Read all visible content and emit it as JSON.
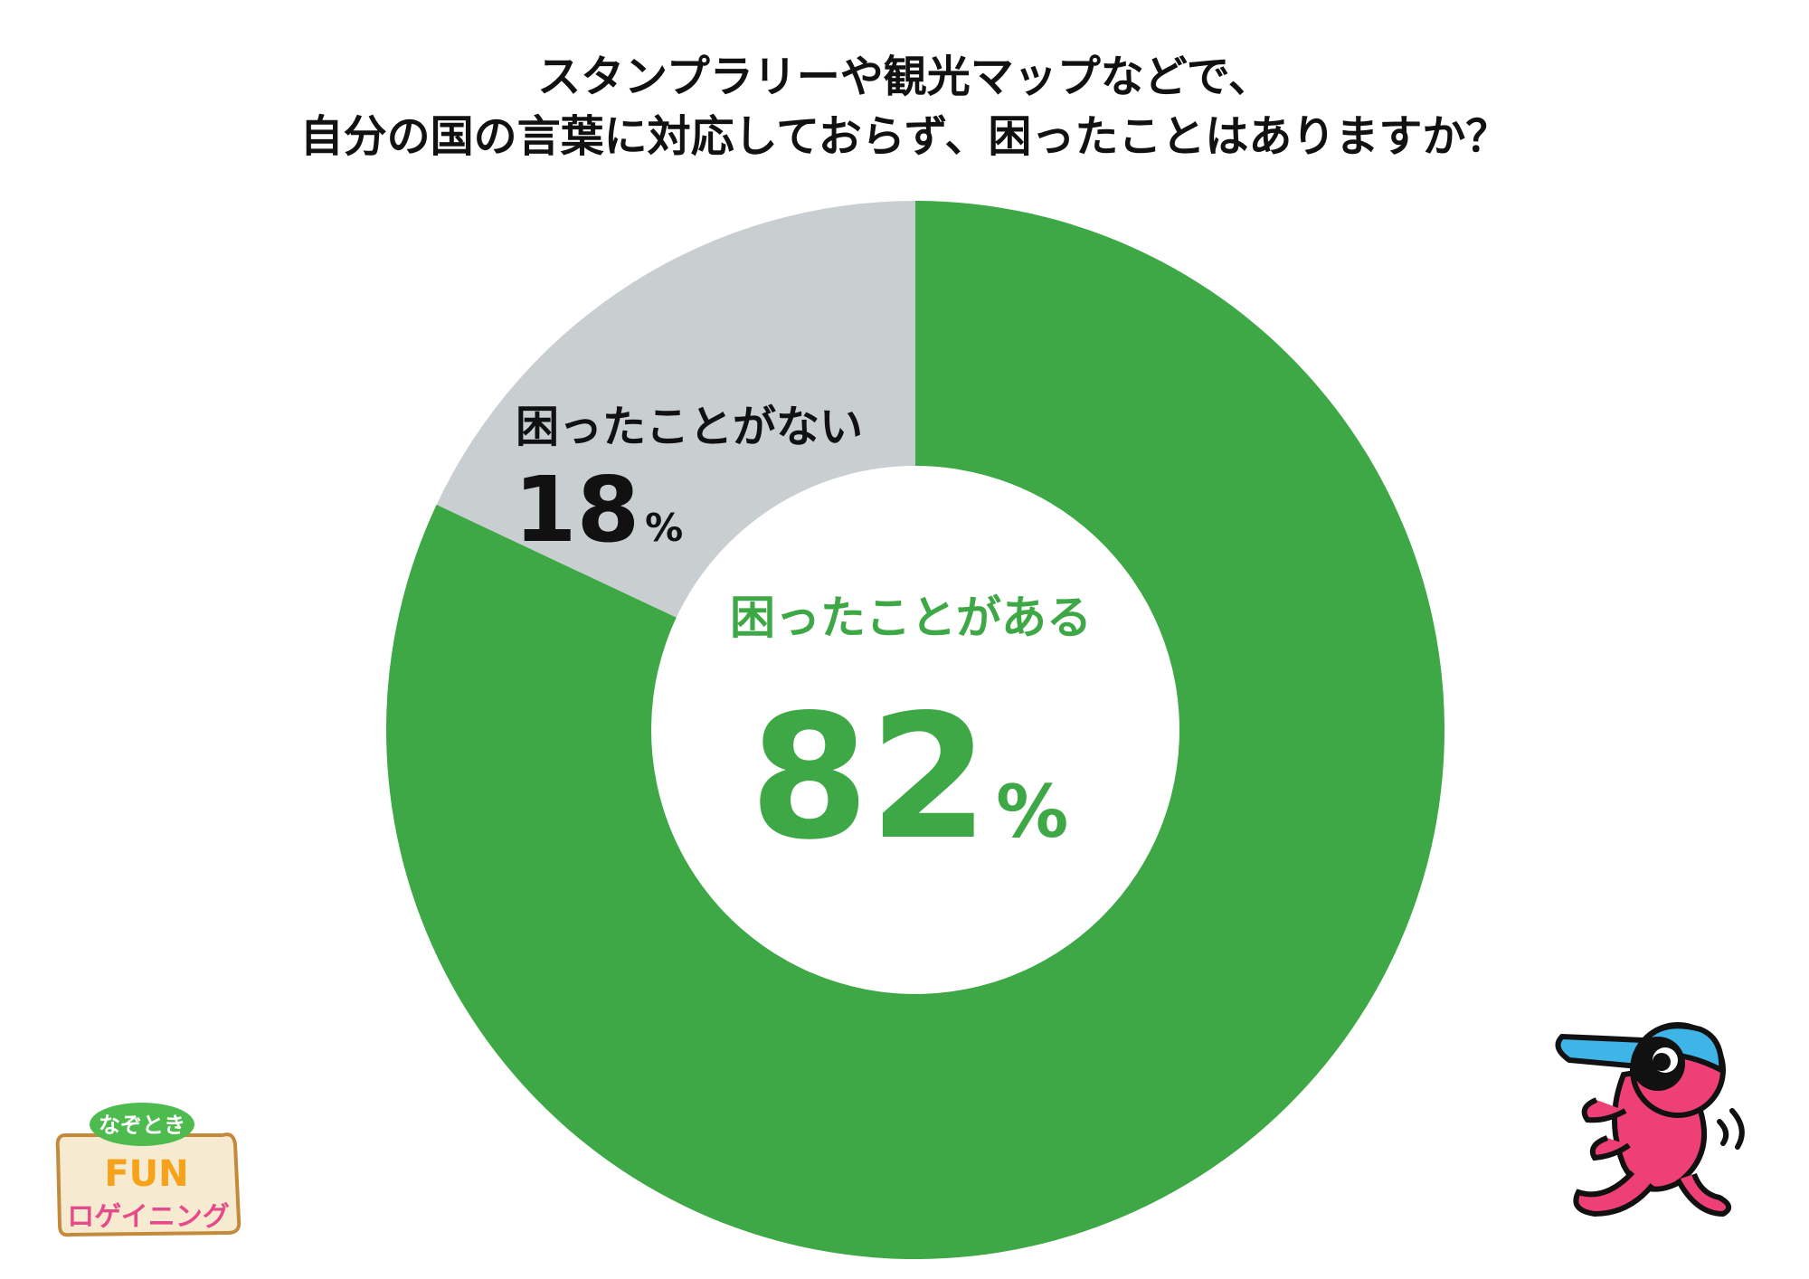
{
  "title": {
    "line1": "スタンプラリーや観光マップなどで、",
    "line2": "自分の国の言葉に対応しておらず、困ったことはありますか？"
  },
  "colors": {
    "yes": "#3da845",
    "no": "#c9cfd1",
    "text_dark": "#111111"
  },
  "chart_data": {
    "type": "pie",
    "variant": "donut",
    "title": "スタンプラリーや観光マップなどで、自分の国の言葉に対応しておらず、困ったことはありますか？",
    "start": "12 o'clock, clockwise",
    "slices": [
      {
        "label": "困ったことがある",
        "value": 82,
        "value_text": "82",
        "unit": "%",
        "color": "#3da845"
      },
      {
        "label": "困ったことがない",
        "value": 18,
        "value_text": "18",
        "unit": "%",
        "color": "#c9cfd1"
      }
    ]
  },
  "logo": {
    "line1": "なぞとき",
    "line2": "FUN",
    "line3": "ロゲイニング"
  },
  "mascot": {
    "icon": "running-mascot-icon"
  }
}
